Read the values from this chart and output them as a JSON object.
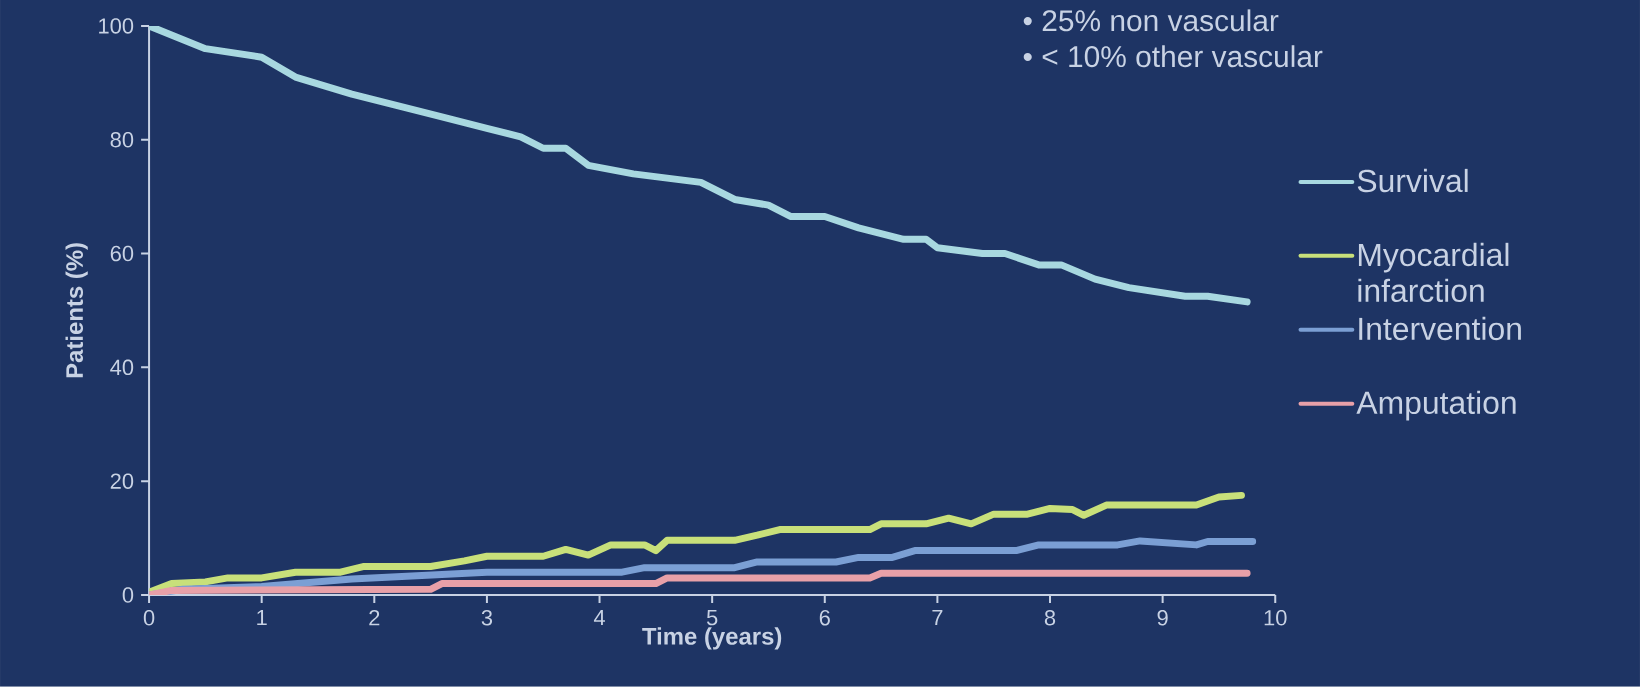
{
  "chart_data": {
    "type": "line",
    "xlabel": "Time (years)",
    "ylabel": "Patients (%)",
    "annotations": [
      "• 25% non vascular",
      "• < 10% other vascular"
    ],
    "xlim": [
      0,
      10
    ],
    "ylim": [
      0,
      100
    ],
    "xticks": [
      0,
      1,
      2,
      3,
      4,
      5,
      6,
      7,
      8,
      9,
      10
    ],
    "yticks": [
      0,
      20,
      40,
      60,
      80,
      100
    ],
    "grid": false,
    "legend": "right",
    "marker": "none",
    "line_style": "solid",
    "series": [
      {
        "name": "Survival",
        "color": "#a8d8e0",
        "x": [
          0,
          0.5,
          1,
          1.3,
          1.8,
          2.2,
          2.6,
          3,
          3.3,
          3.5,
          3.7,
          3.9,
          4.3,
          4.7,
          4.9,
          5.2,
          5.5,
          5.7,
          6,
          6.3,
          6.7,
          6.9,
          7,
          7.4,
          7.6,
          7.9,
          8.1,
          8.4,
          8.7,
          9.2,
          9.4,
          9.75
        ],
        "values": [
          100,
          96,
          94.5,
          91,
          88,
          86,
          84,
          82,
          80.5,
          78.5,
          78.5,
          75.5,
          74,
          73,
          72.5,
          69.5,
          68.5,
          66.5,
          66.5,
          64.5,
          62.5,
          62.5,
          61,
          60,
          60,
          58,
          58,
          55.5,
          54,
          52.5,
          52.5,
          51.5
        ]
      },
      {
        "name": "Myocardial infarction",
        "color": "#c8e07a",
        "x": [
          0,
          0.2,
          0.5,
          0.7,
          1,
          1.3,
          1.7,
          1.9,
          2.5,
          2.8,
          3,
          3.5,
          3.7,
          3.9,
          4.1,
          4.4,
          4.5,
          4.6,
          5.2,
          5.4,
          5.6,
          6.4,
          6.5,
          6.9,
          7.1,
          7.3,
          7.5,
          7.8,
          8,
          8.2,
          8.3,
          8.5,
          9.3,
          9.5,
          9.7
        ],
        "values": [
          0.5,
          2,
          2.3,
          3,
          3,
          4,
          4,
          5,
          5,
          6,
          6.8,
          6.8,
          8,
          7,
          8.8,
          8.8,
          7.8,
          9.6,
          9.6,
          10.5,
          11.5,
          11.5,
          12.5,
          12.5,
          13.5,
          12.5,
          14.2,
          14.2,
          15.2,
          15,
          14,
          15.8,
          15.8,
          17.2,
          17.5
        ]
      },
      {
        "name": "Intervention",
        "color": "#7b9fd4",
        "x": [
          0,
          0.3,
          1,
          1.8,
          2.6,
          3,
          4.2,
          4.4,
          5.2,
          5.4,
          6.1,
          6.3,
          6.6,
          6.8,
          7.7,
          7.9,
          8.6,
          8.8,
          9.3,
          9.4,
          9.8
        ],
        "values": [
          0,
          1,
          1.5,
          2.8,
          3.6,
          4,
          4,
          4.8,
          4.8,
          5.8,
          5.8,
          6.6,
          6.6,
          7.8,
          7.8,
          8.8,
          8.8,
          9.5,
          8.8,
          9.4,
          9.4
        ]
      },
      {
        "name": "Amputation",
        "color": "#e8a0a8",
        "x": [
          0,
          0.2,
          2.5,
          2.6,
          4.5,
          4.6,
          6.4,
          6.5,
          9.75
        ],
        "values": [
          0,
          0.8,
          1,
          2,
          2,
          3,
          3,
          3.8,
          3.8
        ]
      }
    ]
  }
}
